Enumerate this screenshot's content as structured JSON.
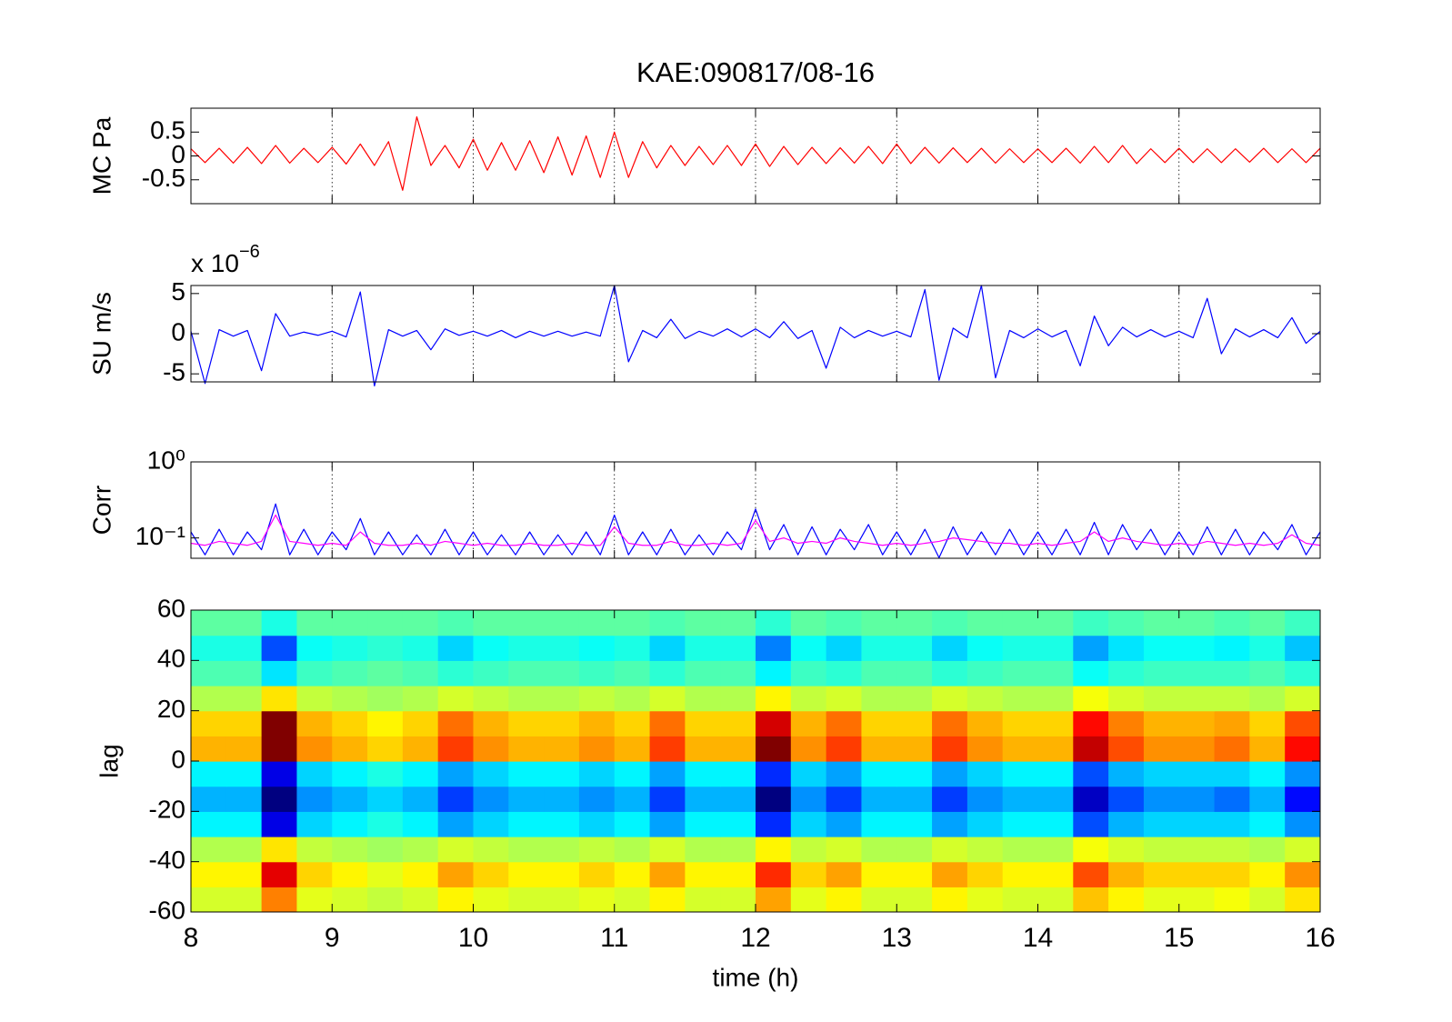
{
  "chart_data": [
    {
      "type": "line",
      "title": "KAE:090817/08-16",
      "ylabel": "MC Pa",
      "xlim": [
        8,
        16
      ],
      "xticks": [
        8,
        9,
        10,
        11,
        12,
        13,
        14,
        15,
        16
      ],
      "show_xtick_labels": false,
      "grid": true,
      "ylim": [
        -1,
        1
      ],
      "yticks": [
        -0.5,
        0,
        0.5
      ],
      "x": [
        8.0,
        8.1,
        8.2,
        8.3,
        8.4,
        8.5,
        8.6,
        8.7,
        8.8,
        8.9,
        9.0,
        9.1,
        9.2,
        9.3,
        9.4,
        9.5,
        9.6,
        9.7,
        9.8,
        9.9,
        10.0,
        10.1,
        10.2,
        10.3,
        10.4,
        10.5,
        10.6,
        10.7,
        10.8,
        10.9,
        11.0,
        11.1,
        11.2,
        11.3,
        11.4,
        11.5,
        11.6,
        11.7,
        11.8,
        11.9,
        12.0,
        12.1,
        12.2,
        12.3,
        12.4,
        12.5,
        12.6,
        12.7,
        12.8,
        12.9,
        13.0,
        13.1,
        13.2,
        13.3,
        13.4,
        13.5,
        13.6,
        13.7,
        13.8,
        13.9,
        14.0,
        14.1,
        14.2,
        14.3,
        14.4,
        14.5,
        14.6,
        14.7,
        14.8,
        14.9,
        15.0,
        15.1,
        15.2,
        15.3,
        15.4,
        15.5,
        15.6,
        15.7,
        15.8,
        15.9,
        16.0
      ],
      "series": [
        {
          "color": "#ff0000",
          "values": [
            0.15,
            -0.14,
            0.16,
            -0.15,
            0.18,
            -0.16,
            0.22,
            -0.15,
            0.16,
            -0.14,
            0.18,
            -0.17,
            0.25,
            -0.2,
            0.3,
            -0.72,
            0.82,
            -0.2,
            0.22,
            -0.25,
            0.35,
            -0.3,
            0.28,
            -0.3,
            0.32,
            -0.35,
            0.4,
            -0.4,
            0.42,
            -0.45,
            0.5,
            -0.45,
            0.3,
            -0.25,
            0.22,
            -0.2,
            0.2,
            -0.18,
            0.22,
            -0.2,
            0.25,
            -0.22,
            0.2,
            -0.18,
            0.18,
            -0.16,
            0.17,
            -0.15,
            0.2,
            -0.16,
            0.25,
            -0.16,
            0.18,
            -0.15,
            0.17,
            -0.14,
            0.16,
            -0.15,
            0.15,
            -0.14,
            0.15,
            -0.14,
            0.16,
            -0.15,
            0.2,
            -0.14,
            0.22,
            -0.16,
            0.15,
            -0.14,
            0.16,
            -0.14,
            0.15,
            -0.14,
            0.15,
            -0.13,
            0.16,
            -0.14,
            0.15,
            -0.14,
            0.16
          ]
        }
      ]
    },
    {
      "type": "line",
      "ylabel": "SU m/s",
      "multiplier": "x 10",
      "multiplier_exponent": "−6",
      "xlim": [
        8,
        16
      ],
      "xticks": [
        8,
        9,
        10,
        11,
        12,
        13,
        14,
        15,
        16
      ],
      "show_xtick_labels": false,
      "grid": true,
      "ylim": [
        -6,
        6
      ],
      "yticks": [
        -5,
        0,
        5
      ],
      "x": [
        8.0,
        8.1,
        8.2,
        8.3,
        8.4,
        8.5,
        8.6,
        8.7,
        8.8,
        8.9,
        9.0,
        9.1,
        9.2,
        9.3,
        9.4,
        9.5,
        9.6,
        9.7,
        9.8,
        9.9,
        10.0,
        10.1,
        10.2,
        10.3,
        10.4,
        10.5,
        10.6,
        10.7,
        10.8,
        10.9,
        11.0,
        11.1,
        11.2,
        11.3,
        11.4,
        11.5,
        11.6,
        11.7,
        11.8,
        11.9,
        12.0,
        12.1,
        12.2,
        12.3,
        12.4,
        12.5,
        12.6,
        12.7,
        12.8,
        12.9,
        13.0,
        13.1,
        13.2,
        13.3,
        13.4,
        13.5,
        13.6,
        13.7,
        13.8,
        13.9,
        14.0,
        14.1,
        14.2,
        14.3,
        14.4,
        14.5,
        14.6,
        14.7,
        14.8,
        14.9,
        15.0,
        15.1,
        15.2,
        15.3,
        15.4,
        15.5,
        15.6,
        15.7,
        15.8,
        15.9,
        16.0
      ],
      "series": [
        {
          "color": "#0000ff",
          "values": [
            0.3,
            -6.2,
            0.5,
            -0.3,
            0.4,
            -4.6,
            2.5,
            -0.3,
            0.2,
            -0.2,
            0.3,
            -0.4,
            5.2,
            -6.5,
            0.5,
            -0.3,
            0.4,
            -2.0,
            0.6,
            -0.2,
            0.3,
            -0.3,
            0.4,
            -0.5,
            0.3,
            -0.3,
            0.3,
            -0.3,
            0.2,
            -0.3,
            6.0,
            -3.5,
            0.4,
            -0.5,
            1.8,
            -0.6,
            0.3,
            -0.3,
            0.6,
            -0.4,
            0.6,
            -0.5,
            1.5,
            -0.6,
            0.4,
            -4.3,
            0.8,
            -0.5,
            0.4,
            -0.3,
            0.3,
            -0.4,
            5.5,
            -5.8,
            0.7,
            -0.5,
            6.0,
            -5.5,
            0.4,
            -0.5,
            0.6,
            -0.4,
            0.4,
            -4.0,
            2.2,
            -1.5,
            0.8,
            -0.4,
            0.5,
            -0.4,
            0.3,
            -0.5,
            4.4,
            -2.5,
            0.6,
            -0.4,
            0.5,
            -0.5,
            2.0,
            -1.2,
            0.3
          ]
        }
      ]
    },
    {
      "type": "line",
      "ylabel": "Corr",
      "ylog": true,
      "xlim": [
        8,
        16
      ],
      "xticks": [
        8,
        9,
        10,
        11,
        12,
        13,
        14,
        15,
        16
      ],
      "show_xtick_labels": false,
      "grid": true,
      "ylim": [
        0.054,
        1
      ],
      "yticks": [
        {
          "value": 0.1,
          "label": "10⁻¹"
        },
        {
          "value": 1,
          "label": "10⁰"
        }
      ],
      "x": [
        8.0,
        8.1,
        8.2,
        8.3,
        8.4,
        8.5,
        8.6,
        8.7,
        8.8,
        8.9,
        9.0,
        9.1,
        9.2,
        9.3,
        9.4,
        9.5,
        9.6,
        9.7,
        9.8,
        9.9,
        10.0,
        10.1,
        10.2,
        10.3,
        10.4,
        10.5,
        10.6,
        10.7,
        10.8,
        10.9,
        11.0,
        11.1,
        11.2,
        11.3,
        11.4,
        11.5,
        11.6,
        11.7,
        11.8,
        11.9,
        12.0,
        12.1,
        12.2,
        12.3,
        12.4,
        12.5,
        12.6,
        12.7,
        12.8,
        12.9,
        13.0,
        13.1,
        13.2,
        13.3,
        13.4,
        13.5,
        13.6,
        13.7,
        13.8,
        13.9,
        14.0,
        14.1,
        14.2,
        14.3,
        14.4,
        14.5,
        14.6,
        14.7,
        14.8,
        14.9,
        15.0,
        15.1,
        15.2,
        15.3,
        15.4,
        15.5,
        15.6,
        15.7,
        15.8,
        15.9,
        16.0
      ],
      "series": [
        {
          "color": "#0000ff",
          "values": [
            0.12,
            0.06,
            0.13,
            0.06,
            0.12,
            0.07,
            0.28,
            0.06,
            0.13,
            0.06,
            0.12,
            0.07,
            0.18,
            0.06,
            0.12,
            0.06,
            0.11,
            0.06,
            0.13,
            0.06,
            0.12,
            0.06,
            0.11,
            0.06,
            0.12,
            0.06,
            0.11,
            0.06,
            0.12,
            0.06,
            0.2,
            0.06,
            0.12,
            0.06,
            0.13,
            0.06,
            0.11,
            0.06,
            0.12,
            0.07,
            0.24,
            0.07,
            0.15,
            0.06,
            0.14,
            0.06,
            0.13,
            0.07,
            0.15,
            0.06,
            0.12,
            0.06,
            0.13,
            0.055,
            0.14,
            0.06,
            0.12,
            0.06,
            0.13,
            0.06,
            0.12,
            0.06,
            0.13,
            0.06,
            0.16,
            0.06,
            0.15,
            0.07,
            0.13,
            0.06,
            0.12,
            0.06,
            0.14,
            0.06,
            0.13,
            0.06,
            0.12,
            0.07,
            0.15,
            0.06,
            0.12
          ]
        },
        {
          "color": "#ff00ff",
          "values": [
            0.085,
            0.08,
            0.09,
            0.085,
            0.08,
            0.09,
            0.2,
            0.09,
            0.085,
            0.08,
            0.085,
            0.08,
            0.12,
            0.085,
            0.08,
            0.08,
            0.085,
            0.08,
            0.09,
            0.085,
            0.08,
            0.085,
            0.08,
            0.08,
            0.085,
            0.08,
            0.08,
            0.085,
            0.08,
            0.08,
            0.14,
            0.085,
            0.08,
            0.08,
            0.09,
            0.08,
            0.08,
            0.085,
            0.08,
            0.085,
            0.17,
            0.09,
            0.1,
            0.085,
            0.09,
            0.085,
            0.1,
            0.09,
            0.085,
            0.08,
            0.085,
            0.08,
            0.085,
            0.09,
            0.1,
            0.095,
            0.09,
            0.085,
            0.085,
            0.08,
            0.085,
            0.08,
            0.085,
            0.09,
            0.12,
            0.09,
            0.1,
            0.09,
            0.085,
            0.08,
            0.085,
            0.08,
            0.09,
            0.085,
            0.08,
            0.085,
            0.08,
            0.085,
            0.11,
            0.085,
            0.08
          ]
        }
      ]
    },
    {
      "type": "heatmap",
      "ylabel": "lag",
      "xlabel": "time (h)",
      "colormap": "jet",
      "clim": [
        -0.3,
        0.3
      ],
      "xlim": [
        8,
        16
      ],
      "xticks": [
        8,
        9,
        10,
        11,
        12,
        13,
        14,
        15,
        16
      ],
      "show_xtick_labels": true,
      "grid": false,
      "ylim": [
        -60,
        60
      ],
      "yticks": [
        -60,
        -40,
        -20,
        0,
        20,
        40,
        60
      ],
      "x": [
        8.125,
        8.375,
        8.625,
        8.875,
        9.125,
        9.375,
        9.625,
        9.875,
        10.125,
        10.375,
        10.625,
        10.875,
        11.125,
        11.375,
        11.625,
        11.875,
        12.125,
        12.375,
        12.625,
        12.875,
        13.125,
        13.375,
        13.625,
        13.875,
        14.125,
        14.375,
        14.625,
        14.875,
        15.125,
        15.375,
        15.625,
        15.875
      ],
      "y": [
        -55,
        -45,
        -35,
        -25,
        -15,
        -5,
        5,
        15,
        25,
        35,
        45,
        55
      ],
      "z": [
        [
          0.05,
          0.05,
          0.15,
          0.06,
          0.05,
          0.04,
          0.05,
          0.08,
          0.06,
          0.05,
          0.05,
          0.06,
          0.05,
          0.08,
          0.05,
          0.05,
          0.13,
          0.06,
          0.08,
          0.05,
          0.05,
          0.08,
          0.06,
          0.05,
          0.05,
          0.11,
          0.08,
          0.06,
          0.06,
          0.07,
          0.05,
          0.09
        ],
        [
          0.08,
          0.08,
          0.24,
          0.1,
          0.08,
          0.06,
          0.08,
          0.13,
          0.1,
          0.08,
          0.08,
          0.1,
          0.08,
          0.13,
          0.08,
          0.08,
          0.2,
          0.1,
          0.13,
          0.08,
          0.08,
          0.13,
          0.1,
          0.08,
          0.08,
          0.18,
          0.12,
          0.1,
          0.1,
          0.1,
          0.08,
          0.14
        ],
        [
          0.03,
          0.03,
          0.09,
          0.04,
          0.03,
          0.02,
          0.03,
          0.05,
          0.04,
          0.03,
          0.03,
          0.04,
          0.03,
          0.05,
          0.03,
          0.03,
          0.08,
          0.04,
          0.05,
          0.03,
          0.03,
          0.05,
          0.04,
          0.03,
          0.03,
          0.07,
          0.05,
          0.04,
          0.04,
          0.04,
          0.03,
          0.05
        ],
        [
          -0.08,
          -0.08,
          -0.24,
          -0.1,
          -0.08,
          -0.06,
          -0.08,
          -0.13,
          -0.1,
          -0.08,
          -0.08,
          -0.1,
          -0.08,
          -0.13,
          -0.08,
          -0.08,
          -0.2,
          -0.1,
          -0.13,
          -0.08,
          -0.08,
          -0.13,
          -0.1,
          -0.08,
          -0.08,
          -0.18,
          -0.12,
          -0.1,
          -0.1,
          -0.1,
          -0.08,
          -0.14
        ],
        [
          -0.12,
          -0.12,
          -0.36,
          -0.14,
          -0.12,
          -0.1,
          -0.12,
          -0.19,
          -0.14,
          -0.12,
          -0.12,
          -0.14,
          -0.12,
          -0.19,
          -0.12,
          -0.12,
          -0.3,
          -0.14,
          -0.19,
          -0.12,
          -0.12,
          -0.19,
          -0.14,
          -0.12,
          -0.12,
          -0.26,
          -0.18,
          -0.14,
          -0.14,
          -0.16,
          -0.12,
          -0.22
        ],
        [
          -0.08,
          -0.08,
          -0.24,
          -0.1,
          -0.08,
          -0.06,
          -0.08,
          -0.13,
          -0.1,
          -0.08,
          -0.08,
          -0.1,
          -0.08,
          -0.13,
          -0.08,
          -0.08,
          -0.2,
          -0.1,
          -0.13,
          -0.08,
          -0.08,
          -0.13,
          -0.1,
          -0.08,
          -0.08,
          -0.18,
          -0.12,
          -0.1,
          -0.1,
          -0.1,
          -0.08,
          -0.14
        ],
        [
          0.12,
          0.12,
          0.36,
          0.14,
          0.12,
          0.1,
          0.12,
          0.19,
          0.14,
          0.12,
          0.12,
          0.14,
          0.12,
          0.19,
          0.12,
          0.12,
          0.3,
          0.14,
          0.19,
          0.12,
          0.12,
          0.19,
          0.14,
          0.12,
          0.12,
          0.26,
          0.18,
          0.14,
          0.14,
          0.16,
          0.12,
          0.22
        ],
        [
          0.1,
          0.1,
          0.3,
          0.12,
          0.1,
          0.08,
          0.1,
          0.16,
          0.12,
          0.1,
          0.1,
          0.12,
          0.1,
          0.16,
          0.1,
          0.1,
          0.25,
          0.12,
          0.16,
          0.1,
          0.1,
          0.16,
          0.12,
          0.1,
          0.1,
          0.22,
          0.15,
          0.12,
          0.12,
          0.13,
          0.1,
          0.18
        ],
        [
          0.03,
          0.03,
          0.09,
          0.04,
          0.03,
          0.02,
          0.03,
          0.05,
          0.04,
          0.03,
          0.03,
          0.04,
          0.03,
          0.05,
          0.03,
          0.03,
          0.08,
          0.04,
          0.05,
          0.03,
          0.03,
          0.05,
          0.04,
          0.03,
          0.03,
          0.07,
          0.05,
          0.04,
          0.04,
          0.04,
          0.03,
          0.05
        ],
        [
          -0.03,
          -0.03,
          -0.09,
          -0.04,
          -0.03,
          -0.02,
          -0.03,
          -0.05,
          -0.04,
          -0.03,
          -0.03,
          -0.04,
          -0.03,
          -0.05,
          -0.03,
          -0.03,
          -0.08,
          -0.04,
          -0.05,
          -0.03,
          -0.03,
          -0.05,
          -0.04,
          -0.03,
          -0.03,
          -0.07,
          -0.05,
          -0.04,
          -0.04,
          -0.04,
          -0.03,
          -0.05
        ],
        [
          -0.06,
          -0.06,
          -0.18,
          -0.07,
          -0.06,
          -0.05,
          -0.06,
          -0.1,
          -0.07,
          -0.06,
          -0.06,
          -0.07,
          -0.06,
          -0.1,
          -0.06,
          -0.06,
          -0.15,
          -0.07,
          -0.1,
          -0.06,
          -0.06,
          -0.1,
          -0.07,
          -0.06,
          -0.06,
          -0.13,
          -0.09,
          -0.07,
          -0.07,
          -0.08,
          -0.06,
          -0.11
        ],
        [
          -0.02,
          -0.02,
          -0.06,
          -0.02,
          -0.02,
          -0.02,
          -0.02,
          -0.03,
          -0.02,
          -0.02,
          -0.02,
          -0.02,
          -0.02,
          -0.03,
          -0.02,
          -0.02,
          -0.05,
          -0.02,
          -0.03,
          -0.02,
          -0.02,
          -0.03,
          -0.02,
          -0.02,
          -0.02,
          -0.04,
          -0.03,
          -0.02,
          -0.02,
          -0.03,
          -0.02,
          -0.04
        ]
      ]
    }
  ]
}
